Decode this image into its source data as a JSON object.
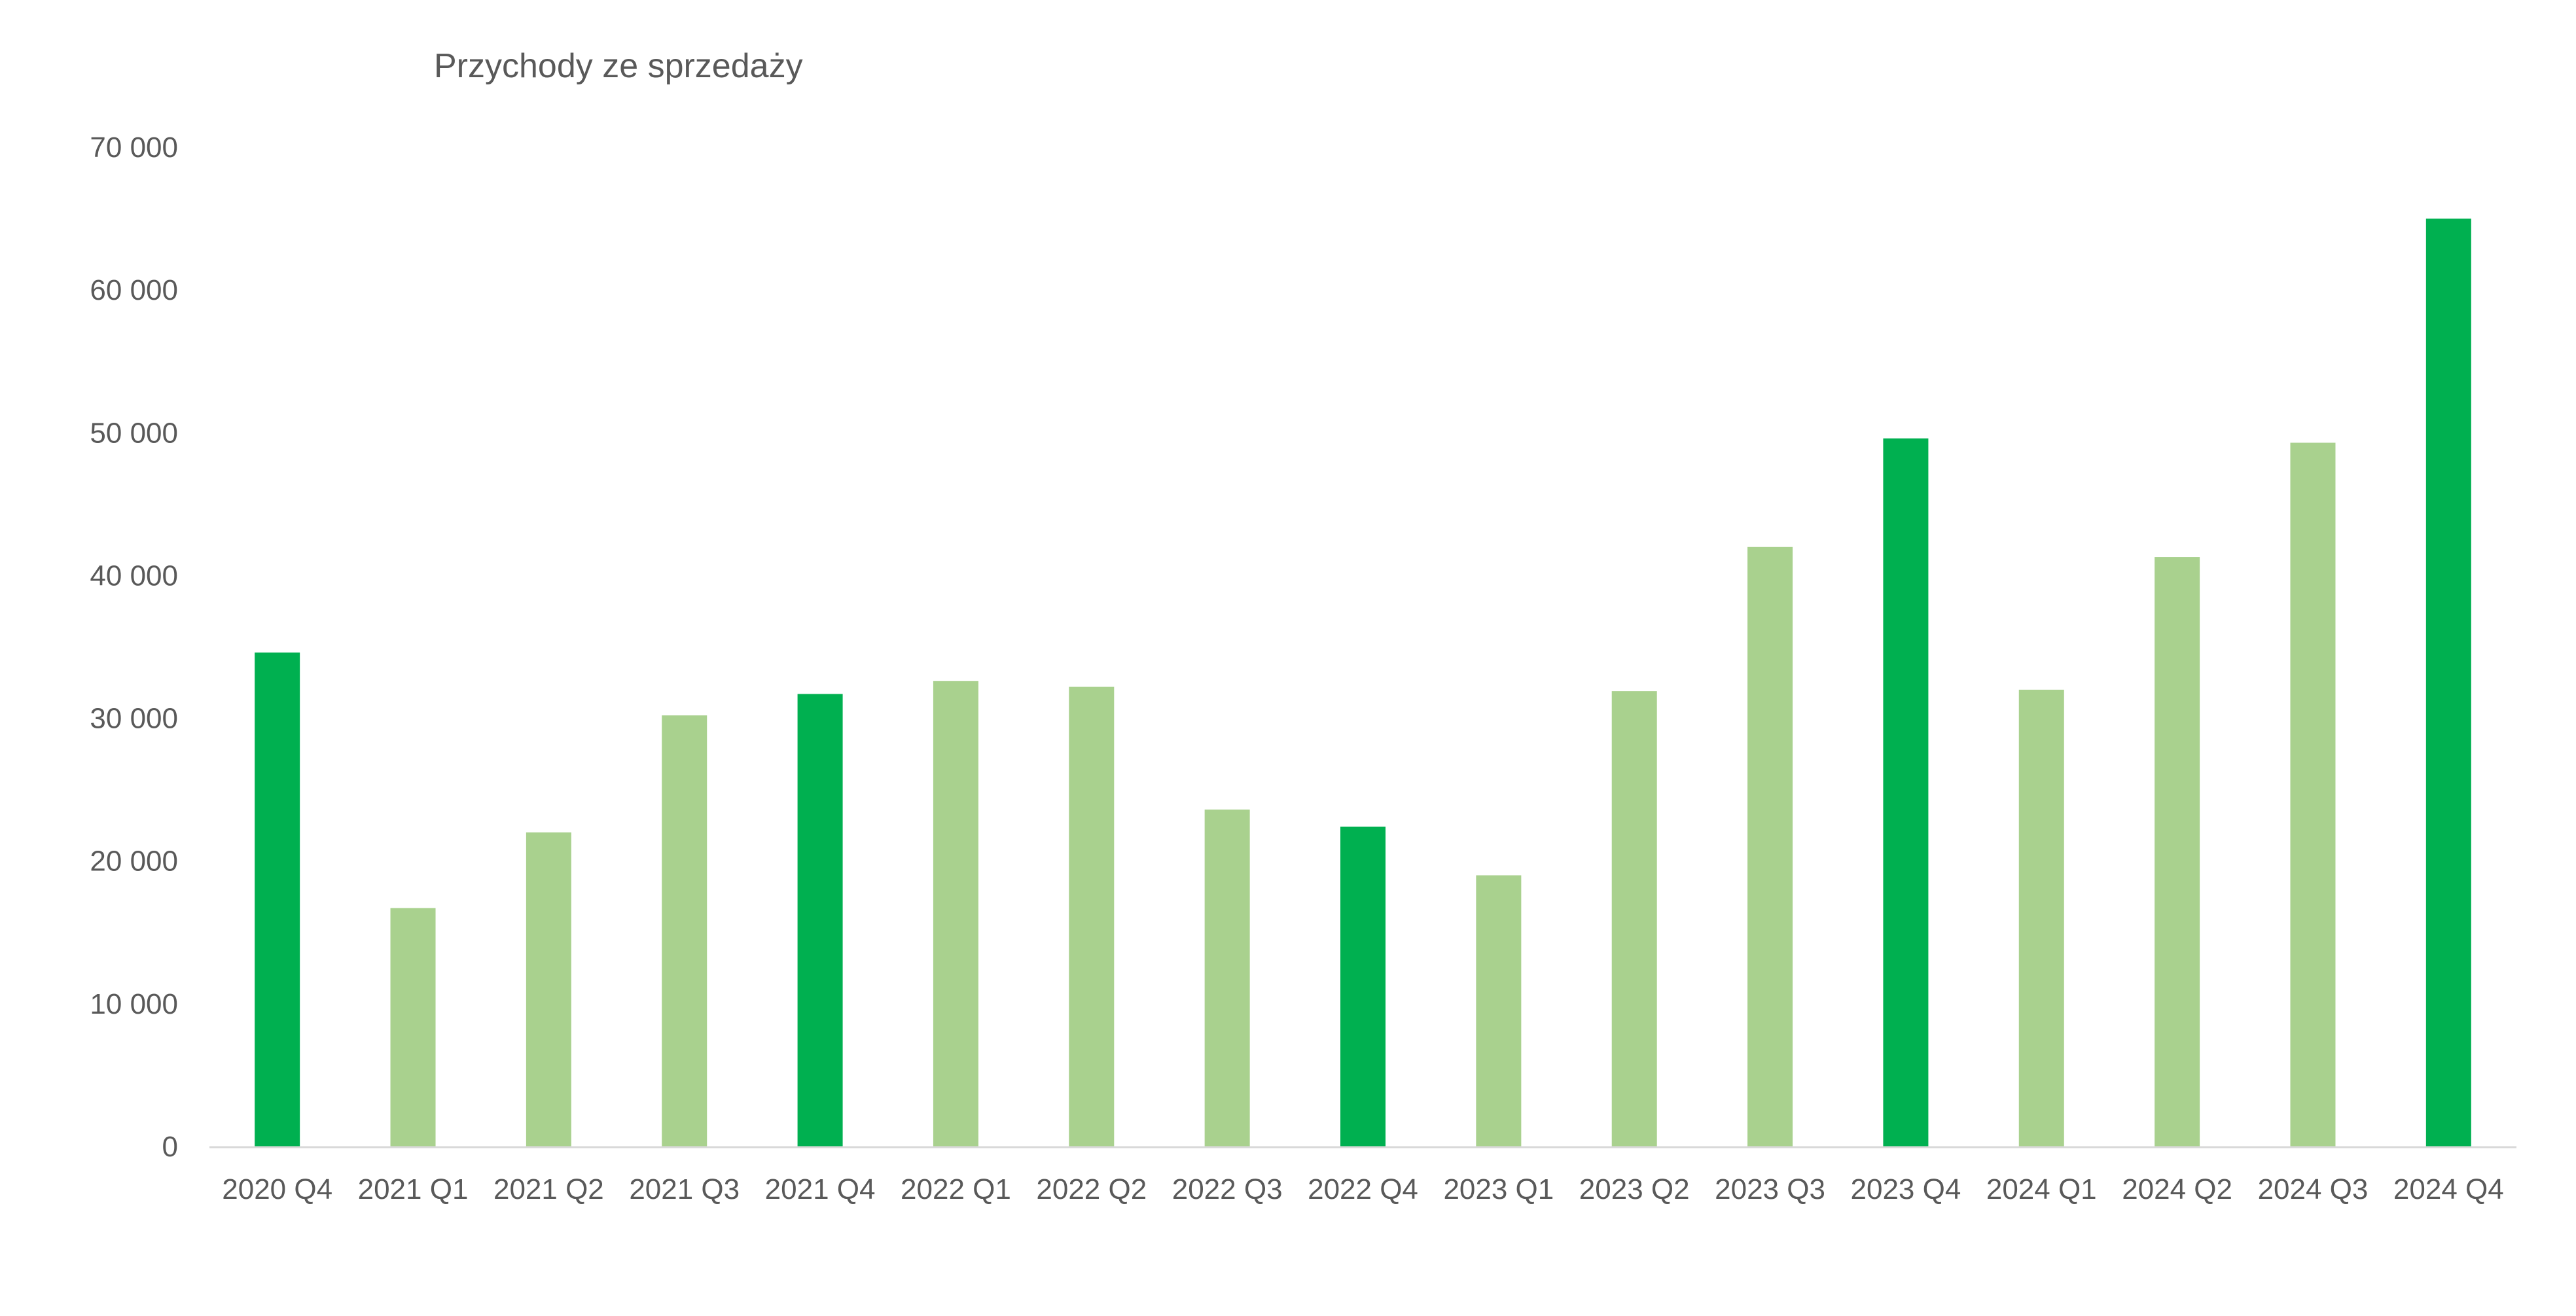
{
  "chart_data": {
    "type": "bar",
    "title": "Przychody ze sprzedaży",
    "xlabel": "",
    "ylabel": "",
    "ylim": [
      0,
      70000
    ],
    "yticks": [
      0,
      10000,
      20000,
      30000,
      40000,
      50000,
      60000,
      70000
    ],
    "ytick_labels": [
      "0",
      "10 000",
      "20 000",
      "30 000",
      "40 000",
      "50 000",
      "60 000",
      "70 000"
    ],
    "grid": false,
    "legend": "none",
    "categories": [
      "2020 Q4",
      "2021 Q1",
      "2021 Q2",
      "2021 Q3",
      "2021 Q4",
      "2022 Q1",
      "2022 Q2",
      "2022 Q3",
      "2022 Q4",
      "2023 Q1",
      "2023 Q2",
      "2023 Q3",
      "2023 Q4",
      "2024 Q1",
      "2024 Q2",
      "2024 Q3",
      "2024 Q4"
    ],
    "values": [
      34600,
      16700,
      22000,
      30200,
      31700,
      32600,
      32200,
      23600,
      22400,
      19000,
      31900,
      42000,
      49600,
      32000,
      41300,
      49300,
      65000
    ],
    "bar_colors": [
      "#00B050",
      "#A9D18E",
      "#A9D18E",
      "#A9D18E",
      "#00B050",
      "#A9D18E",
      "#A9D18E",
      "#A9D18E",
      "#00B050",
      "#A9D18E",
      "#A9D18E",
      "#A9D18E",
      "#00B050",
      "#A9D18E",
      "#A9D18E",
      "#A9D18E",
      "#00B050"
    ],
    "colors": {
      "q4": "#00B050",
      "other": "#A9D18E",
      "text": "#595959",
      "axis": "#D9D9D9"
    }
  }
}
